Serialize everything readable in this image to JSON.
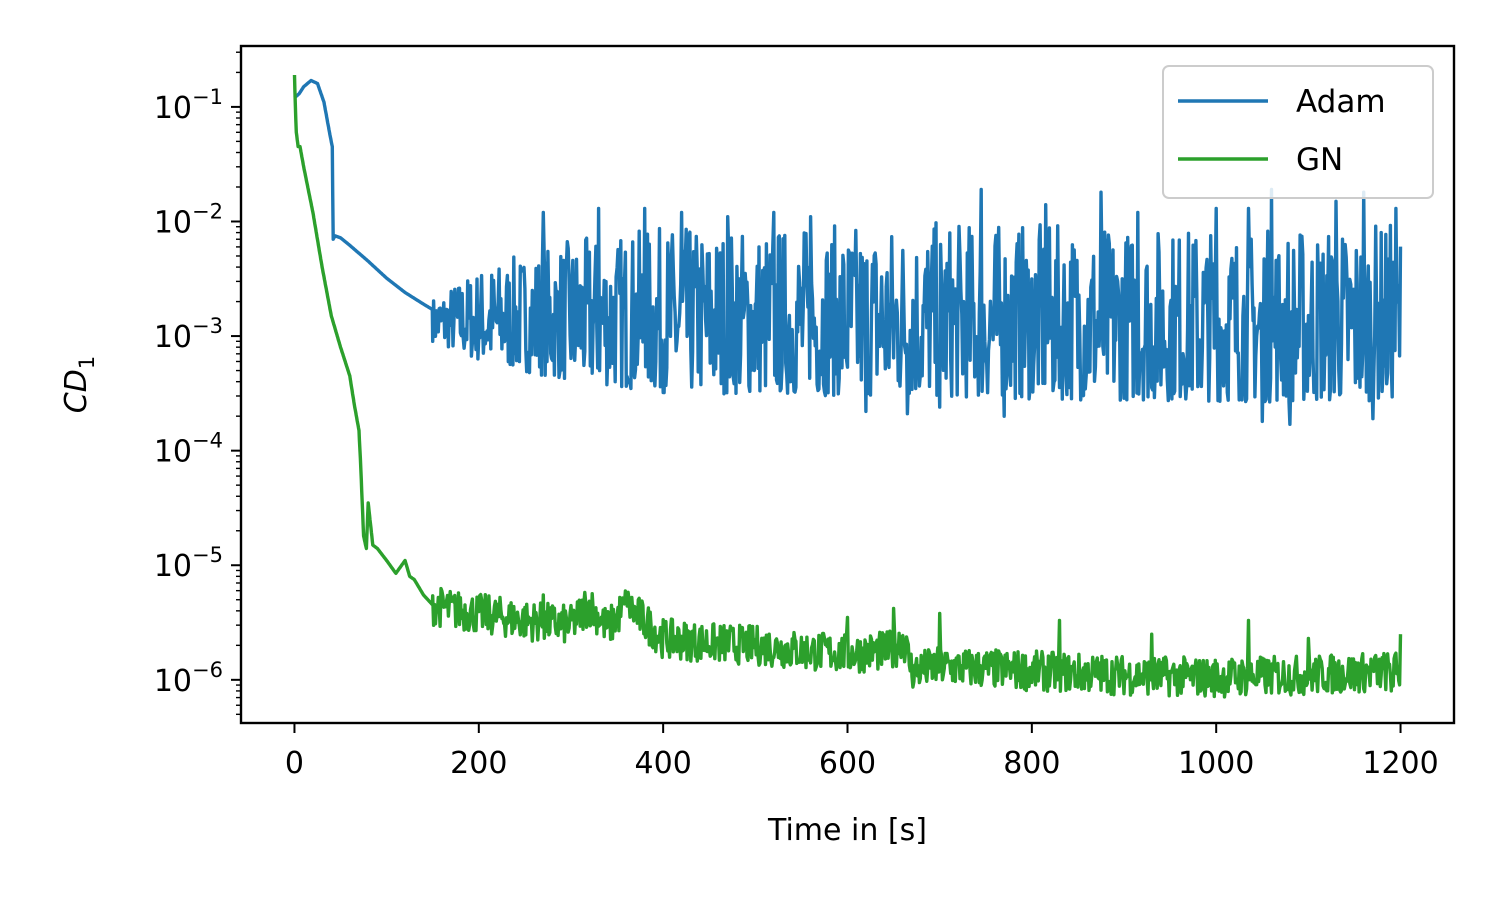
{
  "chart_data": {
    "type": "line",
    "title": "",
    "xlabel": "Time in [s]",
    "ylabel_main": "CD",
    "ylabel_sub": "1",
    "xlim": [
      -58,
      1258
    ],
    "ylim": [
      4.2e-07,
      0.34
    ],
    "yscale": "log",
    "grid": false,
    "legend_position": "top-right",
    "xticks": [
      0,
      200,
      400,
      600,
      800,
      1000,
      1200
    ],
    "yticks": [
      {
        "value": 1e-06,
        "base": "10",
        "exp": "−6"
      },
      {
        "value": 1e-05,
        "base": "10",
        "exp": "−5"
      },
      {
        "value": 0.0001,
        "base": "10",
        "exp": "−4"
      },
      {
        "value": 0.001,
        "base": "10",
        "exp": "−3"
      },
      {
        "value": 0.01,
        "base": "10",
        "exp": "−2"
      },
      {
        "value": 0.1,
        "base": "10",
        "exp": "−1"
      }
    ],
    "series": [
      {
        "name": "Adam",
        "color": "#1f77b4",
        "x": [
          0,
          5,
          10,
          18,
          25,
          32,
          38,
          41,
          42,
          44,
          50,
          60,
          80,
          100,
          120,
          140,
          150,
          160,
          180,
          200,
          250,
          300,
          350,
          400,
          450,
          500,
          600,
          700,
          800,
          900,
          1000,
          1100,
          1200
        ],
        "y": [
          0.12,
          0.13,
          0.15,
          0.17,
          0.16,
          0.11,
          0.06,
          0.045,
          0.007,
          0.0075,
          0.0072,
          0.0062,
          0.0045,
          0.0032,
          0.0024,
          0.0019,
          0.0017,
          0.0014,
          0.0012,
          0.00095,
          0.00075,
          0.00065,
          0.00058,
          0.00053,
          0.0005,
          0.00048,
          0.00046,
          0.00045,
          0.00045,
          0.00044,
          0.00044,
          0.00043,
          0.00043
        ],
        "noise_start": 150,
        "noise_upper": [
          [
            150,
            0.0022
          ],
          [
            200,
            0.004
          ],
          [
            300,
            0.007
          ],
          [
            400,
            0.009
          ],
          [
            500,
            0.009
          ],
          [
            700,
            0.01
          ],
          [
            900,
            0.009
          ],
          [
            1100,
            0.009
          ],
          [
            1200,
            0.01
          ]
        ],
        "noise_lower": [
          [
            150,
            0.0009
          ],
          [
            200,
            0.0006
          ],
          [
            300,
            0.0004
          ],
          [
            400,
            0.00032
          ],
          [
            600,
            0.0003
          ],
          [
            800,
            0.00028
          ],
          [
            1000,
            0.00027
          ],
          [
            1100,
            0.00026
          ],
          [
            1200,
            0.00028
          ]
        ],
        "spikes_up": [
          [
            270,
            0.012
          ],
          [
            330,
            0.013
          ],
          [
            380,
            0.013
          ],
          [
            420,
            0.012
          ],
          [
            470,
            0.011
          ],
          [
            520,
            0.012
          ],
          [
            560,
            0.011
          ],
          [
            620,
            0.013
          ],
          [
            665,
            0.017
          ],
          [
            745,
            0.019
          ],
          [
            770,
            0.015
          ],
          [
            815,
            0.014
          ],
          [
            875,
            0.018
          ],
          [
            915,
            0.012
          ],
          [
            1000,
            0.013
          ],
          [
            1035,
            0.013
          ],
          [
            1060,
            0.019
          ],
          [
            1130,
            0.015
          ],
          [
            1160,
            0.018
          ],
          [
            1195,
            0.013
          ]
        ],
        "spikes_down": [
          [
            620,
            0.00022
          ],
          [
            665,
            0.00021
          ],
          [
            700,
            0.00024
          ],
          [
            770,
            0.0002
          ],
          [
            1050,
            0.00018
          ],
          [
            1080,
            0.00017
          ],
          [
            1170,
            0.00019
          ]
        ]
      },
      {
        "name": "GN",
        "color": "#2ca02c",
        "x": [
          0,
          1,
          2,
          4,
          6,
          10,
          20,
          30,
          40,
          50,
          60,
          65,
          70,
          72,
          75,
          78,
          80,
          85,
          90,
          100,
          110,
          120,
          125,
          130,
          140,
          150,
          170,
          200,
          250,
          300,
          320,
          340,
          360,
          400,
          450,
          500,
          550,
          600,
          650,
          660,
          670,
          700,
          800,
          900,
          1000,
          1100,
          1200
        ],
        "y": [
          0.19,
          0.1,
          0.06,
          0.045,
          0.045,
          0.03,
          0.012,
          0.004,
          0.0015,
          0.0008,
          0.00045,
          0.00025,
          0.00015,
          7e-05,
          1.8e-05,
          1.4e-05,
          3.5e-05,
          1.5e-05,
          1.4e-05,
          1.1e-05,
          8.5e-06,
          1.1e-05,
          8e-06,
          7.5e-06,
          5.5e-06,
          4.5e-06,
          4.1e-06,
          3.8e-06,
          3.3e-06,
          3e-06,
          4.5e-06,
          2.8e-06,
          4.5e-06,
          2.3e-06,
          2.1e-06,
          2e-06,
          1.8e-06,
          1.7e-06,
          1.8e-06,
          2.4e-06,
          1.2e-06,
          1.3e-06,
          1.2e-06,
          1.1e-06,
          1.05e-06,
          1.1e-06,
          1.2e-06
        ],
        "noise_start": 150,
        "noise_amp": 0.35,
        "spikes_up": [
          [
            180,
            5.2e-06
          ],
          [
            270,
            5.5e-06
          ],
          [
            315,
            5.8e-06
          ],
          [
            360,
            5.5e-06
          ],
          [
            600,
            3.5e-06
          ],
          [
            650,
            4.2e-06
          ],
          [
            700,
            3.8e-06
          ],
          [
            830,
            3.3e-06
          ],
          [
            930,
            2.5e-06
          ],
          [
            1035,
            3.3e-06
          ],
          [
            1100,
            2.3e-06
          ],
          [
            1200,
            2.5e-06
          ]
        ],
        "spikes_down": [
          [
            1080,
            8e-07
          ],
          [
            1150,
            8.2e-07
          ],
          [
            1190,
            8e-07
          ]
        ]
      }
    ]
  }
}
